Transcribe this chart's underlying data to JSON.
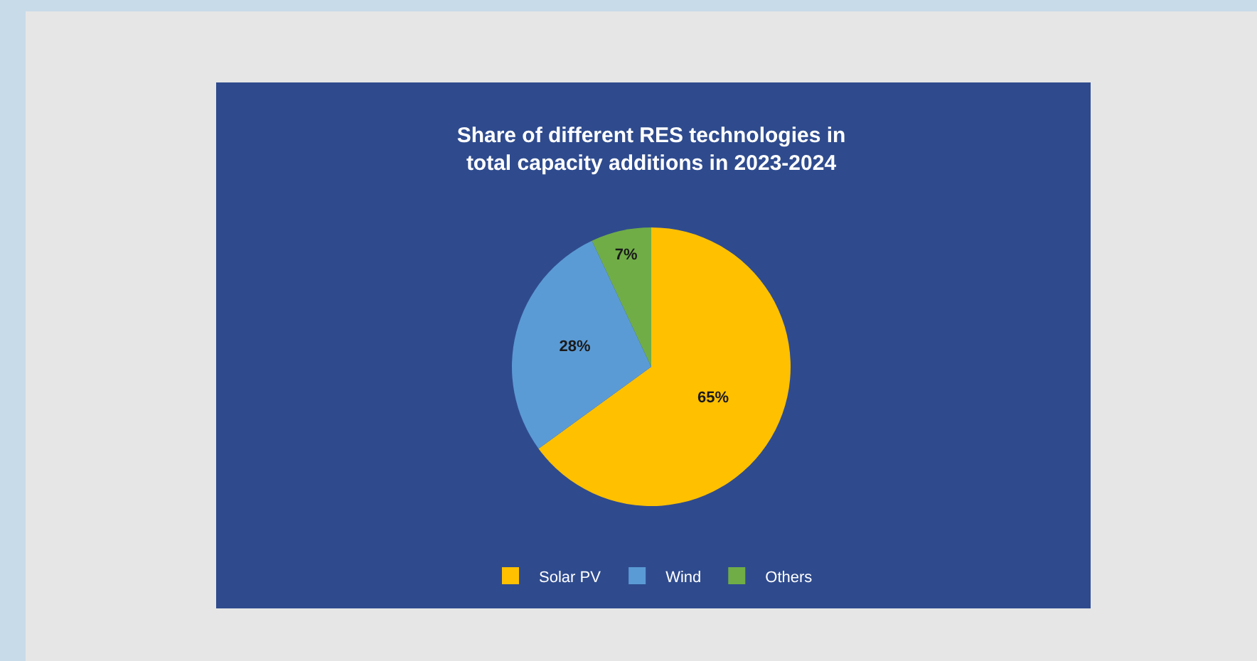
{
  "chart_data": {
    "type": "pie",
    "title": "Share of different RES technologies in\ntotal capacity additions in 2023-2024",
    "categories": [
      "Solar PV",
      "Wind",
      "Others"
    ],
    "values": [
      65,
      28,
      7
    ],
    "colors": [
      "#ffc000",
      "#5b9bd5",
      "#70ad47"
    ],
    "value_labels": [
      "65%",
      "28%",
      "7%"
    ],
    "legend": "bottom"
  }
}
